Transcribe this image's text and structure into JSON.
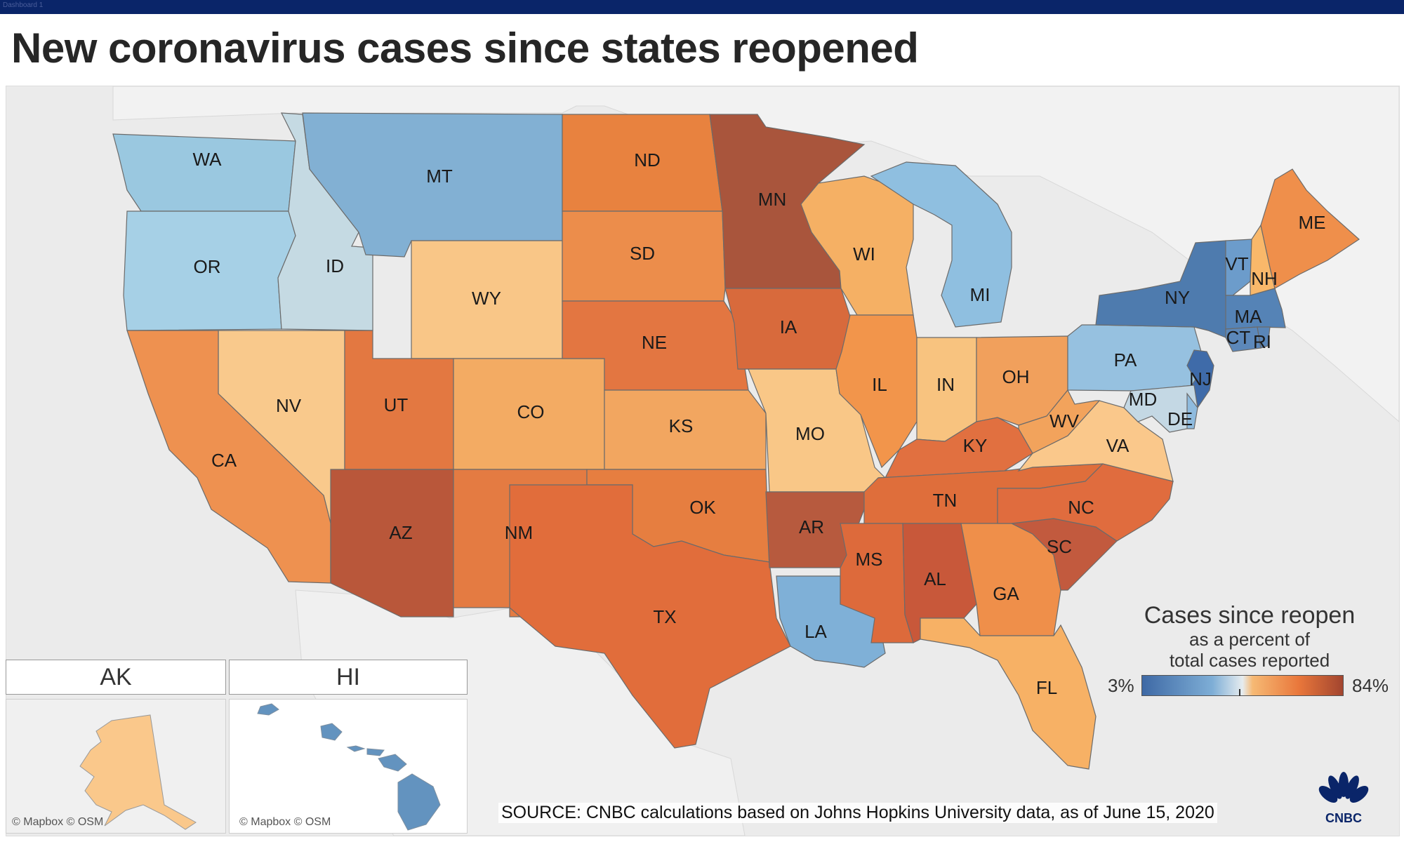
{
  "window": {
    "tab_label": "Dashboard 1"
  },
  "title": "New coronavirus cases since states reopened",
  "legend": {
    "title": "Cases since reopen",
    "subtitle_line1": "as a percent of",
    "subtitle_line2": "total cases reported",
    "min_label": "3%",
    "max_label": "84%",
    "colors": {
      "low": "#3e69a5",
      "mid_low": "#7eaed6",
      "mid": "#e6ecef",
      "mid_high": "#f6b974",
      "high": "#e9773b",
      "max": "#a2452f"
    }
  },
  "states": [
    {
      "id": "WA",
      "label": "WA",
      "color": "#9ac8e0"
    },
    {
      "id": "OR",
      "label": "OR",
      "color": "#a6d0e6"
    },
    {
      "id": "ID",
      "label": "ID",
      "color": "#c5dae3"
    },
    {
      "id": "MT",
      "label": "MT",
      "color": "#82b0d3"
    },
    {
      "id": "WY",
      "label": "WY",
      "color": "#f9c687"
    },
    {
      "id": "NV",
      "label": "NV",
      "color": "#f9c98c"
    },
    {
      "id": "CA",
      "label": "CA",
      "color": "#ee9150"
    },
    {
      "id": "UT",
      "label": "UT",
      "color": "#e37841"
    },
    {
      "id": "AZ",
      "label": "AZ",
      "color": "#b9573a"
    },
    {
      "id": "CO",
      "label": "CO",
      "color": "#f3ab63"
    },
    {
      "id": "NM",
      "label": "NM",
      "color": "#e47b42"
    },
    {
      "id": "ND",
      "label": "ND",
      "color": "#e8823f"
    },
    {
      "id": "SD",
      "label": "SD",
      "color": "#ec8d4b"
    },
    {
      "id": "NE",
      "label": "NE",
      "color": "#e37641"
    },
    {
      "id": "KS",
      "label": "KS",
      "color": "#f2a660"
    },
    {
      "id": "OK",
      "label": "OK",
      "color": "#e67e40"
    },
    {
      "id": "TX",
      "label": "TX",
      "color": "#e16d3b"
    },
    {
      "id": "MN",
      "label": "MN",
      "color": "#a9553c"
    },
    {
      "id": "IA",
      "label": "IA",
      "color": "#d86a3c"
    },
    {
      "id": "MO",
      "label": "MO",
      "color": "#f9c787"
    },
    {
      "id": "AR",
      "label": "AR",
      "color": "#b75a3e"
    },
    {
      "id": "LA",
      "label": "LA",
      "color": "#7fb0d7"
    },
    {
      "id": "WI",
      "label": "WI",
      "color": "#f5b064"
    },
    {
      "id": "IL",
      "label": "IL",
      "color": "#f2954b"
    },
    {
      "id": "MI",
      "label": "MI",
      "color": "#8fbfe0"
    },
    {
      "id": "IN",
      "label": "IN",
      "color": "#f8c37f"
    },
    {
      "id": "OH",
      "label": "OH",
      "color": "#f1a05c"
    },
    {
      "id": "KY",
      "label": "KY",
      "color": "#e17040"
    },
    {
      "id": "TN",
      "label": "TN",
      "color": "#df6e3b"
    },
    {
      "id": "MS",
      "label": "MS",
      "color": "#dd6a3b"
    },
    {
      "id": "AL",
      "label": "AL",
      "color": "#c8583a"
    },
    {
      "id": "GA",
      "label": "GA",
      "color": "#ef8f4a"
    },
    {
      "id": "FL",
      "label": "FL",
      "color": "#f7b165"
    },
    {
      "id": "SC",
      "label": "SC",
      "color": "#c25a3e"
    },
    {
      "id": "NC",
      "label": "NC",
      "color": "#e06c3e"
    },
    {
      "id": "VA",
      "label": "VA",
      "color": "#fac88b"
    },
    {
      "id": "WV",
      "label": "WV",
      "color": "#f2a35c"
    },
    {
      "id": "PA",
      "label": "PA",
      "color": "#96c1e0"
    },
    {
      "id": "NY",
      "label": "NY",
      "color": "#4e7bae"
    },
    {
      "id": "NJ",
      "label": "NJ",
      "color": "#3f6ba9"
    },
    {
      "id": "MD",
      "label": "MD",
      "color": "#c4d8e4"
    },
    {
      "id": "DE",
      "label": "DE",
      "color": "#8fbbde"
    },
    {
      "id": "VT",
      "label": "VT",
      "color": "#6c9ccb"
    },
    {
      "id": "NH",
      "label": "NH",
      "color": "#f9b86a"
    },
    {
      "id": "ME",
      "label": "ME",
      "color": "#ef8f4b"
    },
    {
      "id": "MA",
      "label": "MA",
      "color": "#5583b6"
    },
    {
      "id": "CT",
      "label": "CT",
      "color": "#5c88ba"
    },
    {
      "id": "RI",
      "label": "RI",
      "color": "#5a86b8"
    }
  ],
  "insets": {
    "ak": {
      "label": "AK",
      "color": "#fac88b",
      "attribution": "© Mapbox © OSM"
    },
    "hi": {
      "label": "HI",
      "color": "#6393bf",
      "attribution": "© Mapbox © OSM"
    }
  },
  "source": "SOURCE: CNBC calculations based on Johns Hopkins University data, as of June 15, 2020",
  "logo": {
    "text": "CNBC",
    "icon": "peacock-icon"
  }
}
